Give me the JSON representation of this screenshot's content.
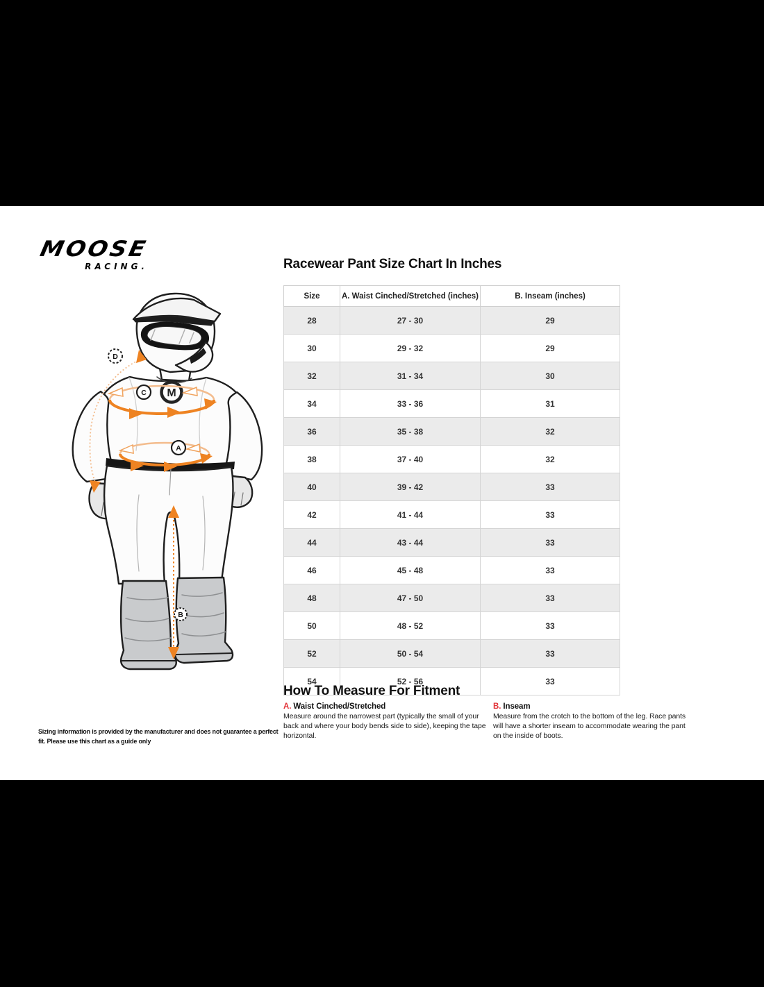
{
  "colors": {
    "background": "#000000",
    "sheet": "#ffffff",
    "accent_orange": "#ee8322",
    "accent_orange_light": "#f3bc8d",
    "accent_red": "#e23338",
    "table_alt_row": "#ebebeb"
  },
  "logo": {
    "brand": "MOOSE",
    "sub": "RACING."
  },
  "size_chart": {
    "title": "Racewear Pant Size Chart In Inches",
    "columns": [
      "Size",
      "A. Waist Cinched/Stretched (inches)",
      "B. Inseam (inches)"
    ],
    "rows": [
      [
        "28",
        "27 - 30",
        "29"
      ],
      [
        "30",
        "29 - 32",
        "29"
      ],
      [
        "32",
        "31 - 34",
        "30"
      ],
      [
        "34",
        "33 - 36",
        "31"
      ],
      [
        "36",
        "35 - 38",
        "32"
      ],
      [
        "38",
        "37 - 40",
        "32"
      ],
      [
        "40",
        "39 - 42",
        "33"
      ],
      [
        "42",
        "41 - 44",
        "33"
      ],
      [
        "44",
        "43 - 44",
        "33"
      ],
      [
        "46",
        "45 - 48",
        "33"
      ],
      [
        "48",
        "47 - 50",
        "33"
      ],
      [
        "50",
        "48 - 52",
        "33"
      ],
      [
        "52",
        "50 - 54",
        "33"
      ],
      [
        "54",
        "52 - 56",
        "33"
      ]
    ]
  },
  "measure": {
    "title": "How To Measure For Fitment",
    "items": [
      {
        "prefix": "A.",
        "label": "Waist Cinched/Stretched",
        "text": "Measure around the narrowest part (typically the small of your back and where your body bends side to side), keeping the tape horizontal."
      },
      {
        "prefix": "B.",
        "label": "Inseam",
        "text": "Measure from the crotch to the bottom of the leg. Race pants will have a shorter inseam to accommodate wearing the pant on the inside of boots."
      }
    ]
  },
  "disclaimer": "Sizing information is provided by the manufacturer and does not guarantee a perfect fit. Please use this chart as a guide only",
  "figure": {
    "chest_logo_letter": "M",
    "markers": {
      "a": "A",
      "b": "B",
      "c": "C",
      "d": "D"
    }
  }
}
